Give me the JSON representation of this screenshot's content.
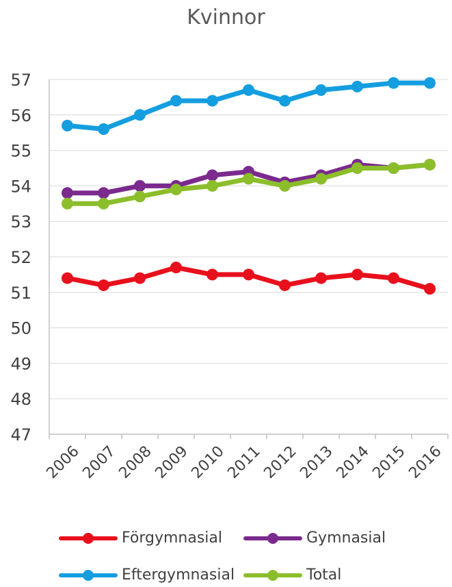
{
  "chart_data": {
    "type": "line",
    "title": "Kvinnor",
    "xlabel": "",
    "ylabel": "",
    "categories": [
      "2006",
      "2007",
      "2008",
      "2009",
      "2010",
      "2011",
      "2012",
      "2013",
      "2014",
      "2015",
      "2016"
    ],
    "ylim": [
      47,
      57
    ],
    "yticks": [
      "47",
      "48",
      "49",
      "50",
      "51",
      "52",
      "53",
      "54",
      "55",
      "56",
      "57"
    ],
    "grid": true,
    "legend_position": "bottom",
    "series": [
      {
        "name": "Förgymnasial",
        "color": "#e8101c",
        "values": [
          51.4,
          51.2,
          51.4,
          51.7,
          51.5,
          51.5,
          51.2,
          51.4,
          51.5,
          51.4,
          51.1
        ]
      },
      {
        "name": "Gymnasial",
        "color": "#7b2a8e",
        "values": [
          53.8,
          53.8,
          54.0,
          54.0,
          54.3,
          54.4,
          54.1,
          54.3,
          54.6,
          54.5,
          54.6
        ]
      },
      {
        "name": "Eftergymnasial",
        "color": "#149ee0",
        "values": [
          55.7,
          55.6,
          56.0,
          56.4,
          56.4,
          56.7,
          56.4,
          56.7,
          56.8,
          56.9,
          56.9
        ]
      },
      {
        "name": "Total",
        "color": "#8bbe2a",
        "values": [
          53.5,
          53.5,
          53.7,
          53.9,
          54.0,
          54.2,
          54.0,
          54.2,
          54.5,
          54.5,
          54.6
        ]
      }
    ]
  }
}
